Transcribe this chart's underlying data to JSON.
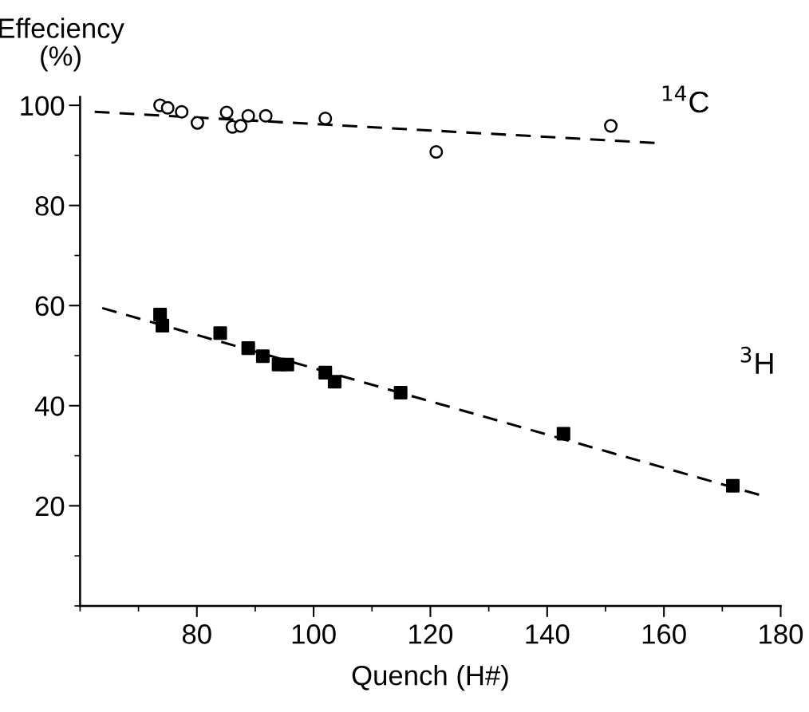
{
  "chart_data": {
    "type": "scatter",
    "xlabel": "Quench (H#)",
    "ylabel": "Effeciency\n(%)",
    "xlim": [
      60,
      180
    ],
    "ylim": [
      0,
      101.7
    ],
    "xticks": [
      {
        "value": 60,
        "label": null
      },
      {
        "value": 70,
        "label": null
      },
      80,
      {
        "value": 90,
        "label": null
      },
      100,
      {
        "value": 110,
        "label": null
      },
      120,
      {
        "value": 130,
        "label": null
      },
      140,
      {
        "value": 150,
        "label": null
      },
      160,
      {
        "value": 170,
        "label": null
      },
      180
    ],
    "yticks": [
      {
        "value": 0,
        "label": null
      },
      {
        "value": 10,
        "label": null
      },
      20,
      {
        "value": 30,
        "label": null
      },
      40,
      {
        "value": 50,
        "label": null
      },
      60,
      {
        "value": 70,
        "label": null
      },
      80,
      {
        "value": 90,
        "label": null
      },
      100
    ],
    "grid": false,
    "legend": false,
    "series": [
      {
        "name": "$^{14}$C",
        "marker": "circle",
        "color": "#000000",
        "x": [
          73.7,
          75.0,
          77.4,
          80.1,
          85.1,
          86.1,
          87.5,
          88.8,
          91.8,
          102.0,
          121.0,
          150.9
        ],
        "values": [
          100.0,
          99.5,
          98.7,
          96.5,
          98.6,
          95.7,
          95.9,
          97.9,
          97.9,
          97.4,
          90.7,
          95.9
        ]
      },
      {
        "type": "line",
        "line_style": "dashed",
        "color": "#000000",
        "x": [
          62.5,
          158.4
        ],
        "values": [
          98.7,
          92.5
        ]
      },
      {
        "name": "$^{3}$H",
        "marker": "square",
        "color": "#000000",
        "x": [
          73.7,
          74.1,
          84.0,
          88.8,
          91.3,
          94.0,
          95.5,
          102.0,
          103.6,
          114.9,
          142.8,
          171.8
        ],
        "values": [
          58.2,
          56.0,
          54.5,
          51.5,
          49.9,
          48.2,
          48.2,
          46.6,
          44.8,
          42.6,
          34.4,
          24.0
        ]
      },
      {
        "type": "line",
        "line_style": "dashed",
        "color": "#000000",
        "x": [
          63.8,
          176.3
        ],
        "values": [
          59.5,
          22.2
        ]
      }
    ]
  }
}
